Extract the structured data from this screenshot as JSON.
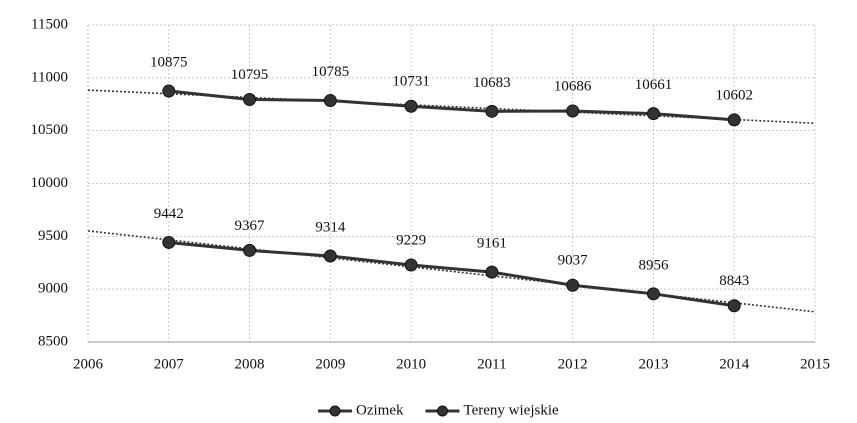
{
  "chart_data": {
    "type": "line",
    "x": [
      2007,
      2008,
      2009,
      2010,
      2011,
      2012,
      2013,
      2014
    ],
    "series": [
      {
        "name": "Ozimek",
        "color": "#333333",
        "values": [
          9442,
          9367,
          9314,
          9229,
          9161,
          9037,
          8956,
          8843
        ]
      },
      {
        "name": "Tereny wiejskie",
        "color": "#333333",
        "values": [
          10875,
          10795,
          10785,
          10731,
          10683,
          10686,
          10661,
          10602
        ]
      }
    ],
    "xlim": [
      2006,
      2015
    ],
    "xticks": [
      2006,
      2007,
      2008,
      2009,
      2010,
      2011,
      2012,
      2013,
      2014,
      2015
    ],
    "ylim": [
      8500,
      11500
    ],
    "yticks": [
      8500,
      9000,
      9500,
      10000,
      10500,
      11000,
      11500
    ],
    "grid": true,
    "trendline": true,
    "data_labels": true,
    "legend": "bottom"
  }
}
